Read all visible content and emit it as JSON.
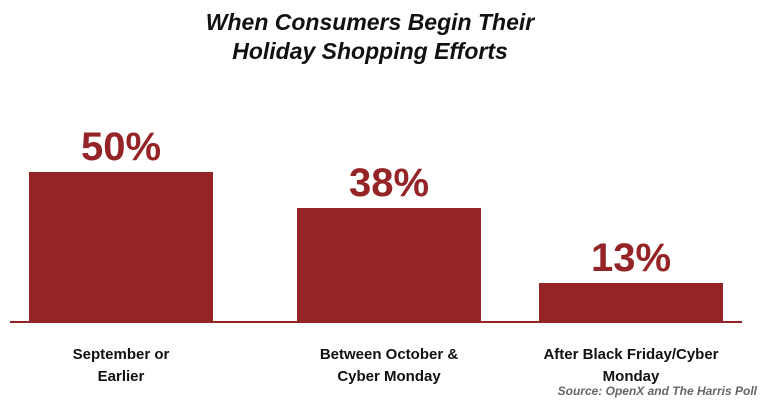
{
  "chart_data": {
    "type": "bar",
    "title": [
      "When Consumers Begin Their",
      "Holiday Shopping Efforts"
    ],
    "categories": [
      "September or Earlier",
      "Between October & Cyber Monday",
      "After Black Friday/Cyber Monday"
    ],
    "values": [
      50,
      38,
      13
    ],
    "value_labels": [
      "50%",
      "38%",
      "13%"
    ],
    "color": "#952427",
    "source": "Source: OpenX and The Harris Poll"
  }
}
